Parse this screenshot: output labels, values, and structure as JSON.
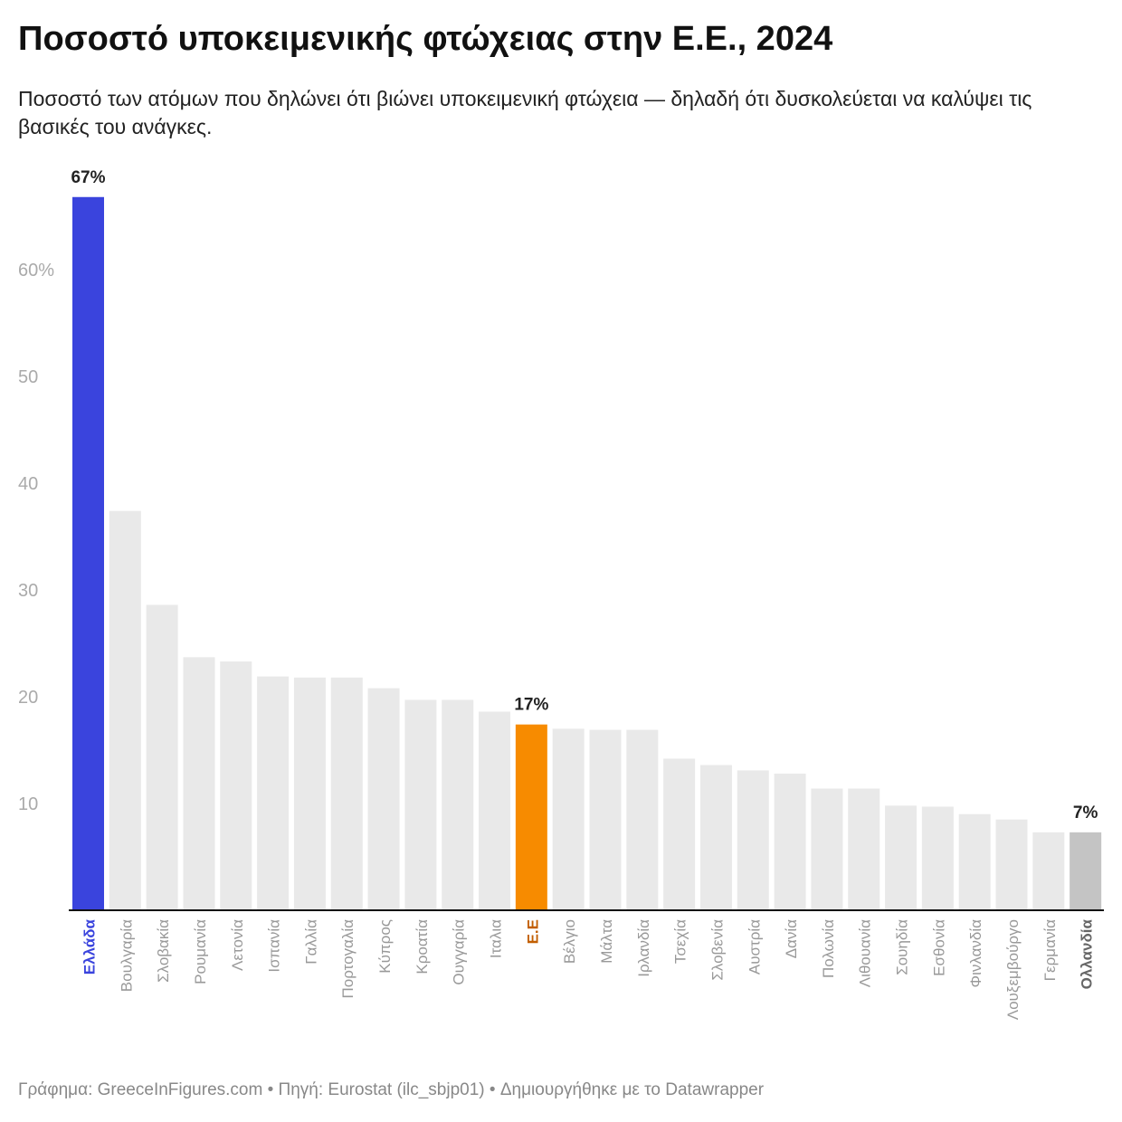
{
  "title": "Ποσοστό υποκειμενικής φτώχειας στην Ε.Ε., 2024",
  "subtitle": "Ποσοστό των ατόμων που δηλώνει ότι βιώνει υποκειμενική φτώχεια — δηλαδή ότι δυσκολεύεται να καλύψει τις βασικές του ανάγκες.",
  "footer": "Γράφημα: GreeceInFigures.com • Πηγή: Eurostat (ilc_sbjp01)  • Δημιουργήθηκε με το Datawrapper",
  "chart_data": {
    "type": "bar",
    "categories": [
      "Ελλάδα",
      "Βουλγαρία",
      "Σλοβακία",
      "Ρουμανία",
      "Λετονία",
      "Ισπανία",
      "Γαλλία",
      "Πορτογαλία",
      "Κύπρος",
      "Κροατία",
      "Ουγγαρία",
      "Ιταλια",
      "Ε.Ε",
      "Βέλγιο",
      "Μάλτα",
      "Ιρλανδία",
      "Τσεχία",
      "Σλοβενία",
      "Αυστρία",
      "Δανία",
      "Πολωνία",
      "Λιθουανία",
      "Σουηδία",
      "Εσθονία",
      "Φινλανδία",
      "Λουξεμβούργο",
      "Γερμανία",
      "Ολλανδία"
    ],
    "values": [
      66.8,
      37.4,
      28.6,
      23.7,
      23.3,
      21.9,
      21.8,
      21.8,
      20.8,
      19.7,
      19.7,
      18.6,
      17.4,
      17.0,
      16.9,
      16.9,
      14.2,
      13.6,
      13.1,
      12.8,
      11.4,
      11.4,
      9.8,
      9.7,
      9.0,
      8.5,
      7.3,
      7.3
    ],
    "ylim": [
      0,
      67
    ],
    "yticks": [
      {
        "v": 10,
        "label": "10"
      },
      {
        "v": 20,
        "label": "20"
      },
      {
        "v": 30,
        "label": "30"
      },
      {
        "v": 40,
        "label": "40"
      },
      {
        "v": 50,
        "label": "50"
      },
      {
        "v": 60,
        "label": "60%"
      }
    ],
    "grid": false,
    "default_color": "#e9e9e9",
    "highlights": [
      {
        "category": "Ελλάδα",
        "color": "#3a44dd",
        "label_color": "#3a44dd",
        "data_label": "67%"
      },
      {
        "category": "Ε.Ε",
        "color": "#f78b00",
        "label_color": "#c25e00",
        "data_label": "17%"
      },
      {
        "category": "Ολλανδία",
        "color": "#c4c4c4",
        "label_color": "#666666",
        "data_label": "7%"
      }
    ],
    "tick_label_color": "#999999"
  }
}
